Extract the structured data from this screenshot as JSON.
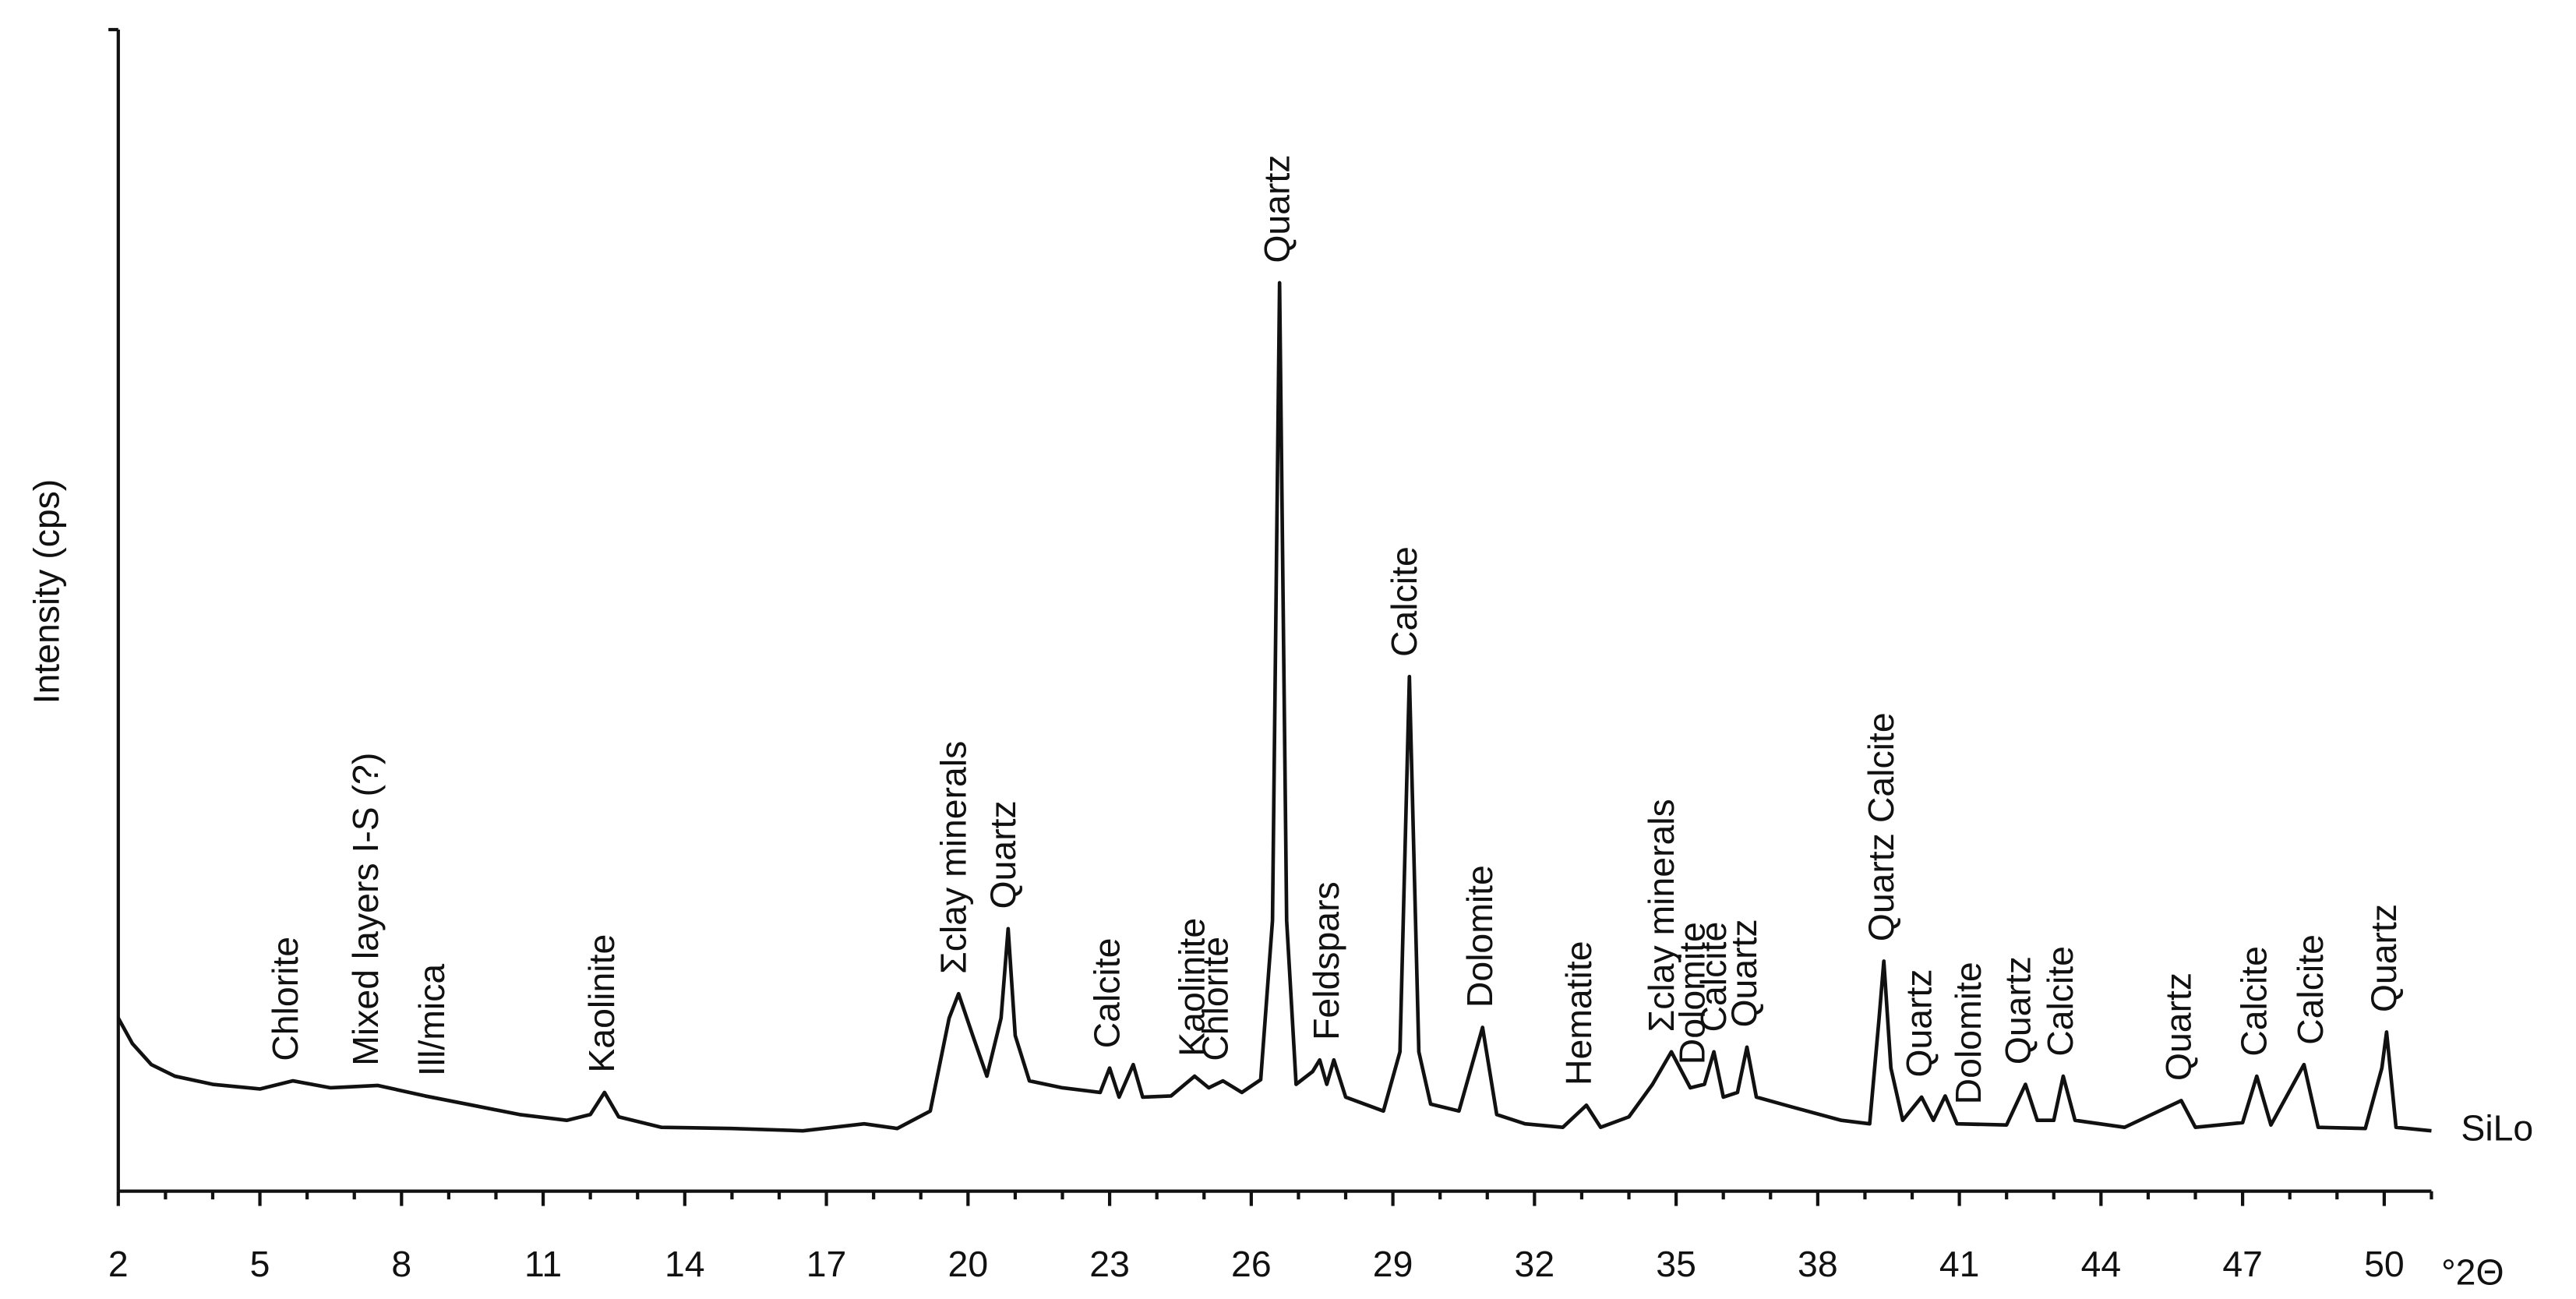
{
  "chart_data": {
    "type": "line",
    "y_label": "Intensity (cps)",
    "x_unit": "°2Θ",
    "xlim": [
      2,
      51
    ],
    "xticks": [
      2,
      5,
      8,
      11,
      14,
      17,
      20,
      23,
      26,
      29,
      32,
      35,
      38,
      41,
      44,
      47,
      50
    ],
    "xminorticks": [
      3,
      4,
      6,
      7,
      9,
      10,
      12,
      13,
      15,
      16,
      18,
      19,
      21,
      22,
      24,
      25,
      27,
      28,
      30,
      31,
      33,
      34,
      36,
      37,
      39,
      40,
      42,
      43,
      45,
      46,
      48,
      49,
      51
    ],
    "ylim": [
      0,
      100
    ],
    "series": [
      {
        "name": "SiLo",
        "color": "#111111",
        "x": [
          2.0,
          2.3,
          2.7,
          3.2,
          4.0,
          5.0,
          5.7,
          6.5,
          7.5,
          8.5,
          9.5,
          10.5,
          11.5,
          12.0,
          12.3,
          12.6,
          13.5,
          15.0,
          16.5,
          17.8,
          18.5,
          19.2,
          19.6,
          19.8,
          20.1,
          20.4,
          20.7,
          20.85,
          21.0,
          21.3,
          22.0,
          22.8,
          23.0,
          23.2,
          23.5,
          23.7,
          24.3,
          24.8,
          25.1,
          25.4,
          25.8,
          26.2,
          26.45,
          26.6,
          26.75,
          26.95,
          27.3,
          27.45,
          27.6,
          27.75,
          28.0,
          28.8,
          29.15,
          29.35,
          29.55,
          29.8,
          30.4,
          30.9,
          31.2,
          31.8,
          32.6,
          33.1,
          33.4,
          34.0,
          34.5,
          34.9,
          35.3,
          35.6,
          35.8,
          36.0,
          36.3,
          36.5,
          36.7,
          37.5,
          38.5,
          39.1,
          39.3,
          39.4,
          39.55,
          39.8,
          40.2,
          40.45,
          40.7,
          40.95,
          42.0,
          42.4,
          42.65,
          43.0,
          43.2,
          43.45,
          44.5,
          45.7,
          46.0,
          47.0,
          47.3,
          47.6,
          48.3,
          48.6,
          49.6,
          49.95,
          50.05,
          50.25,
          51.0
        ],
        "values": [
          14.9,
          12.7,
          10.9,
          9.9,
          9.2,
          8.8,
          9.5,
          8.9,
          9.1,
          8.2,
          7.4,
          6.6,
          6.1,
          6.6,
          8.5,
          6.4,
          5.5,
          5.4,
          5.2,
          5.8,
          5.4,
          6.9,
          14.9,
          17.0,
          13.4,
          9.9,
          14.9,
          22.6,
          13.4,
          9.5,
          8.9,
          8.5,
          10.6,
          8.1,
          10.9,
          8.1,
          8.2,
          9.9,
          8.9,
          9.5,
          8.5,
          9.6,
          23.3,
          78.2,
          23.3,
          9.2,
          10.3,
          11.3,
          9.2,
          11.3,
          8.1,
          6.9,
          12.0,
          44.3,
          12.0,
          7.5,
          6.9,
          14.1,
          6.6,
          5.8,
          5.5,
          7.4,
          5.5,
          6.4,
          9.2,
          12.0,
          8.9,
          9.2,
          12.0,
          8.1,
          8.5,
          12.4,
          8.1,
          7.2,
          6.1,
          5.8,
          14.9,
          19.8,
          10.6,
          6.1,
          8.1,
          6.1,
          8.2,
          5.8,
          5.7,
          9.2,
          6.1,
          6.1,
          9.9,
          6.1,
          5.5,
          7.8,
          5.5,
          5.9,
          9.9,
          5.7,
          10.9,
          5.5,
          5.4,
          10.6,
          13.7,
          5.5,
          5.2
        ]
      }
    ],
    "annotations": [
      {
        "text": "Chlorite",
        "x": 5.6
      },
      {
        "text": "Mixed layers I-S (?)",
        "x": 7.3
      },
      {
        "text": "Ill/mica",
        "x": 8.7
      },
      {
        "text": "Kaolinite",
        "x": 12.3
      },
      {
        "text": "Σclay minerals",
        "x": 19.75
      },
      {
        "text": "Quartz",
        "x": 20.8
      },
      {
        "text": "Calcite",
        "x": 23.0
      },
      {
        "text": "Kaolinite",
        "x": 24.8
      },
      {
        "text": "Chlorite",
        "x": 25.3
      },
      {
        "text": "Quartz",
        "x": 26.6
      },
      {
        "text": "Feldspars",
        "x": 27.65
      },
      {
        "text": "Calcite",
        "x": 29.3
      },
      {
        "text": "Dolomite",
        "x": 30.9
      },
      {
        "text": "Hematite",
        "x": 33.0
      },
      {
        "text": "Σclay minerals",
        "x": 34.75
      },
      {
        "text": "Dolomite",
        "x": 35.4
      },
      {
        "text": "Calcite",
        "x": 35.85
      },
      {
        "text": "Quartz",
        "x": 36.5
      },
      {
        "text": "Quartz Calcite",
        "x": 39.4
      },
      {
        "text": "Quartz",
        "x": 40.2
      },
      {
        "text": "Dolomite",
        "x": 41.25
      },
      {
        "text": "Quartz",
        "x": 42.3
      },
      {
        "text": "Calcite",
        "x": 43.2
      },
      {
        "text": "Quartz",
        "x": 45.7
      },
      {
        "text": "Calcite",
        "x": 47.3
      },
      {
        "text": "Calcite",
        "x": 48.5
      },
      {
        "text": "Quartz",
        "x": 50.05
      }
    ]
  }
}
